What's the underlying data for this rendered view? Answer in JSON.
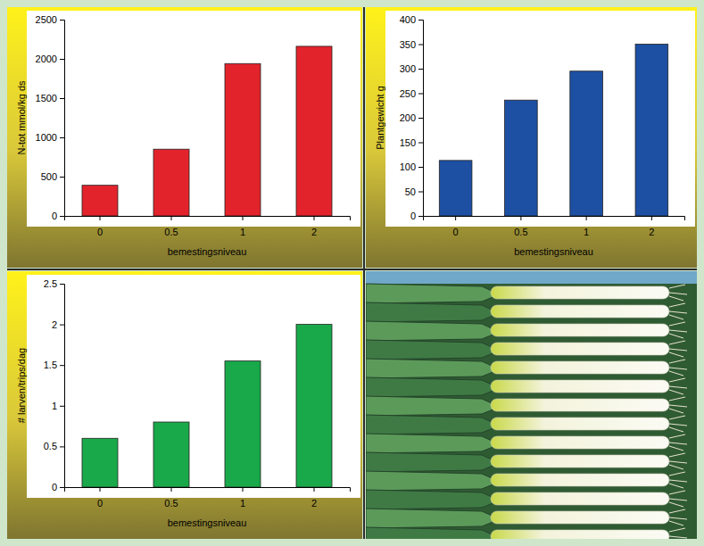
{
  "chart_data": [
    {
      "type": "bar",
      "xlabel": "bemestingsniveau",
      "ylabel": "N-tot mmol/kg ds",
      "categories": [
        "0",
        "0.5",
        "1",
        "2"
      ],
      "values": [
        390,
        850,
        1940,
        2160
      ],
      "color": "#e3232c",
      "ylim": [
        0,
        2500
      ],
      "yticks": [
        0,
        500,
        1000,
        1500,
        2000,
        2500
      ],
      "grid": false
    },
    {
      "type": "bar",
      "xlabel": "bemestingsniveau",
      "ylabel": "Plantgewicht g",
      "categories": [
        "0",
        "0.5",
        "1",
        "2"
      ],
      "values": [
        113,
        236,
        295,
        350
      ],
      "color": "#1d4fa3",
      "ylim": [
        0,
        400
      ],
      "yticks": [
        0,
        50,
        100,
        150,
        200,
        250,
        300,
        350,
        400
      ],
      "grid": false
    },
    {
      "type": "bar",
      "xlabel": "bemestingsniveau",
      "ylabel": "# larven/trips/dag",
      "categories": [
        "0",
        "0.5",
        "1",
        "2"
      ],
      "values": [
        0.6,
        0.8,
        1.55,
        2.0
      ],
      "color": "#19a94a",
      "ylim": [
        0,
        2.5
      ],
      "yticks": [
        0,
        0.5,
        1,
        1.5,
        2,
        2.5
      ],
      "grid": false
    }
  ]
}
